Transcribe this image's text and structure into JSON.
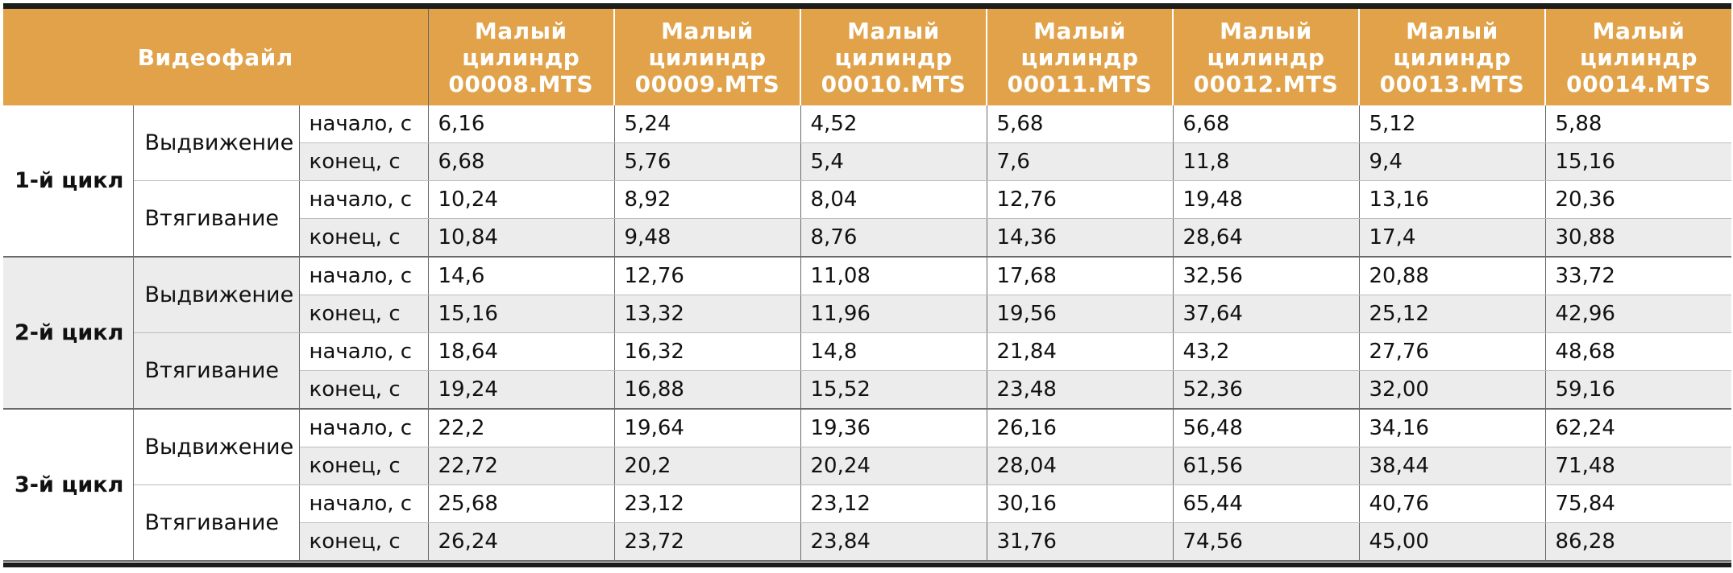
{
  "header": {
    "video_file_label": "Видеофайл",
    "files": [
      [
        "Малый",
        "цилиндр",
        "00008.MTS"
      ],
      [
        "Малый",
        "цилиндр",
        "00009.MTS"
      ],
      [
        "Малый",
        "цилиндр",
        "00010.MTS"
      ],
      [
        "Малый",
        "цилиндр",
        "00011.MTS"
      ],
      [
        "Малый",
        "цилиндр",
        "00012.MTS"
      ],
      [
        "Малый",
        "цилиндр",
        "00013.MTS"
      ],
      [
        "Малый",
        "цилиндр",
        "00014.MTS"
      ]
    ]
  },
  "cycles": [
    {
      "label": "1-й цикл",
      "phases": [
        {
          "label": "Выдвижение",
          "rows": [
            {
              "type": "начало, с",
              "values": [
                "6,16",
                "5,24",
                "4,52",
                "5,68",
                "6,68",
                "5,12",
                "5,88"
              ]
            },
            {
              "type": "конец, с",
              "values": [
                "6,68",
                "5,76",
                "5,4",
                "7,6",
                "11,8",
                "9,4",
                "15,16"
              ]
            }
          ]
        },
        {
          "label": "Втягивание",
          "rows": [
            {
              "type": "начало, с",
              "values": [
                "10,24",
                "8,92",
                "8,04",
                "12,76",
                "19,48",
                "13,16",
                "20,36"
              ]
            },
            {
              "type": "конец, с",
              "values": [
                "10,84",
                "9,48",
                "8,76",
                "14,36",
                "28,64",
                "17,4",
                "30,88"
              ]
            }
          ]
        }
      ]
    },
    {
      "label": "2-й цикл",
      "phases": [
        {
          "label": "Выдвижение",
          "rows": [
            {
              "type": "начало, с",
              "values": [
                "14,6",
                "12,76",
                "11,08",
                "17,68",
                "32,56",
                "20,88",
                "33,72"
              ]
            },
            {
              "type": "конец, с",
              "values": [
                "15,16",
                "13,32",
                "11,96",
                "19,56",
                "37,64",
                "25,12",
                "42,96"
              ]
            }
          ]
        },
        {
          "label": "Втягивание",
          "rows": [
            {
              "type": "начало, с",
              "values": [
                "18,64",
                "16,32",
                "14,8",
                "21,84",
                "43,2",
                "27,76",
                "48,68"
              ]
            },
            {
              "type": "конец, с",
              "values": [
                "19,24",
                "16,88",
                "15,52",
                "23,48",
                "52,36",
                "32,00",
                "59,16"
              ]
            }
          ]
        }
      ]
    },
    {
      "label": "3-й цикл",
      "phases": [
        {
          "label": "Выдвижение",
          "rows": [
            {
              "type": "начало, с",
              "values": [
                "22,2",
                "19,64",
                "19,36",
                "26,16",
                "56,48",
                "34,16",
                "62,24"
              ]
            },
            {
              "type": "конец, с",
              "values": [
                "22,72",
                "20,2",
                "20,24",
                "28,04",
                "61,56",
                "38,44",
                "71,48"
              ]
            }
          ]
        },
        {
          "label": "Втягивание",
          "rows": [
            {
              "type": "начало, с",
              "values": [
                "25,68",
                "23,12",
                "23,12",
                "30,16",
                "65,44",
                "40,76",
                "75,84"
              ]
            },
            {
              "type": "конец, с",
              "values": [
                "26,24",
                "23,72",
                "23,84",
                "31,76",
                "74,56",
                "45,00",
                "86,28"
              ]
            }
          ]
        }
      ]
    }
  ],
  "colors": {
    "header_bg": "#e1a24a",
    "header_text": "#ffffff",
    "alt_row": "#ececec",
    "rule": "#1c1c1c"
  }
}
